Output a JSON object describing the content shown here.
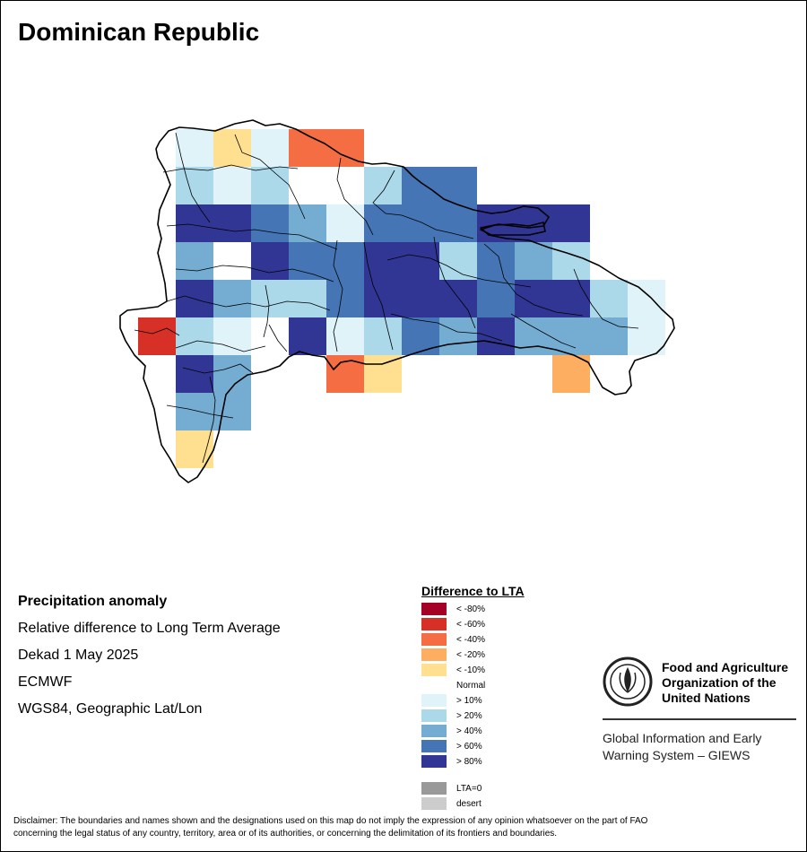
{
  "title": "Dominican Republic",
  "info": {
    "heading": "Precipitation anomaly",
    "subtitle": "Relative difference to Long Term Average",
    "period": "Dekad 1 May 2025",
    "source": "ECMWF",
    "projection": "WGS84, Geographic Lat/Lon"
  },
  "legend": {
    "title": "Difference to LTA",
    "items": [
      {
        "label": "< -80%",
        "color": "#a50026"
      },
      {
        "label": "< -60%",
        "color": "#d73027"
      },
      {
        "label": "< -40%",
        "color": "#f46d43"
      },
      {
        "label": "< -20%",
        "color": "#fdae61"
      },
      {
        "label": "< -10%",
        "color": "#fee090"
      },
      {
        "label": "Normal",
        "color": "#ffffff"
      },
      {
        "label": "> 10%",
        "color": "#e0f3f8"
      },
      {
        "label": "> 20%",
        "color": "#abd9e9"
      },
      {
        "label": "> 40%",
        "color": "#74add1"
      },
      {
        "label": "> 60%",
        "color": "#4575b4"
      },
      {
        "label": "> 80%",
        "color": "#313695"
      }
    ],
    "extra": [
      {
        "label": "LTA=0",
        "color": "#999999"
      },
      {
        "label": "desert",
        "color": "#cccccc"
      }
    ]
  },
  "logo": {
    "line1": "Food and Agriculture",
    "line2": "Organization of the",
    "line3": "United Nations",
    "giews_line1": "Global Information and Early",
    "giews_line2": "Warning System – GIEWS"
  },
  "disclaimer": {
    "line1": "Disclaimer: The boundaries and names shown and the designations used on this map do not imply the expression of any opinion whatsoever on the part of FAO",
    "line2": "concerning the legal status of any country, territory, area or of its authorities, or concerning the delimitation of its frontiers and boundaries."
  },
  "grid": {
    "classes": [
      "< -80%",
      "< -60%",
      "< -40%",
      "< -20%",
      "< -10%",
      "Normal",
      "> 10%",
      "> 20%",
      "> 40%",
      "> 60%",
      "> 80%"
    ],
    "cols": 14,
    "rows": 9,
    "cells": [
      [
        null,
        6,
        4,
        6,
        2,
        2,
        null,
        null,
        null,
        null,
        null,
        null,
        null,
        null
      ],
      [
        null,
        7,
        6,
        7,
        5,
        5,
        7,
        9,
        null,
        null,
        null,
        null,
        null,
        null
      ],
      [
        null,
        10,
        10,
        9,
        8,
        6,
        9,
        9,
        9,
        10,
        10,
        null,
        null,
        null
      ],
      [
        null,
        8,
        5,
        10,
        9,
        9,
        10,
        10,
        7,
        9,
        8,
        7,
        null,
        null
      ],
      [
        null,
        10,
        8,
        7,
        7,
        9,
        10,
        10,
        10,
        9,
        10,
        10,
        7,
        6
      ],
      [
        1,
        7,
        6,
        5,
        10,
        6,
        7,
        9,
        8,
        10,
        8,
        8,
        8,
        6
      ],
      [
        null,
        10,
        8,
        null,
        null,
        2,
        4,
        null,
        null,
        null,
        null,
        3,
        null,
        null
      ],
      [
        null,
        8,
        8,
        null,
        null,
        null,
        null,
        null,
        null,
        null,
        null,
        null,
        null,
        null
      ],
      [
        null,
        4,
        null,
        null,
        null,
        null,
        null,
        null,
        null,
        null,
        null,
        null,
        null,
        null
      ]
    ]
  }
}
